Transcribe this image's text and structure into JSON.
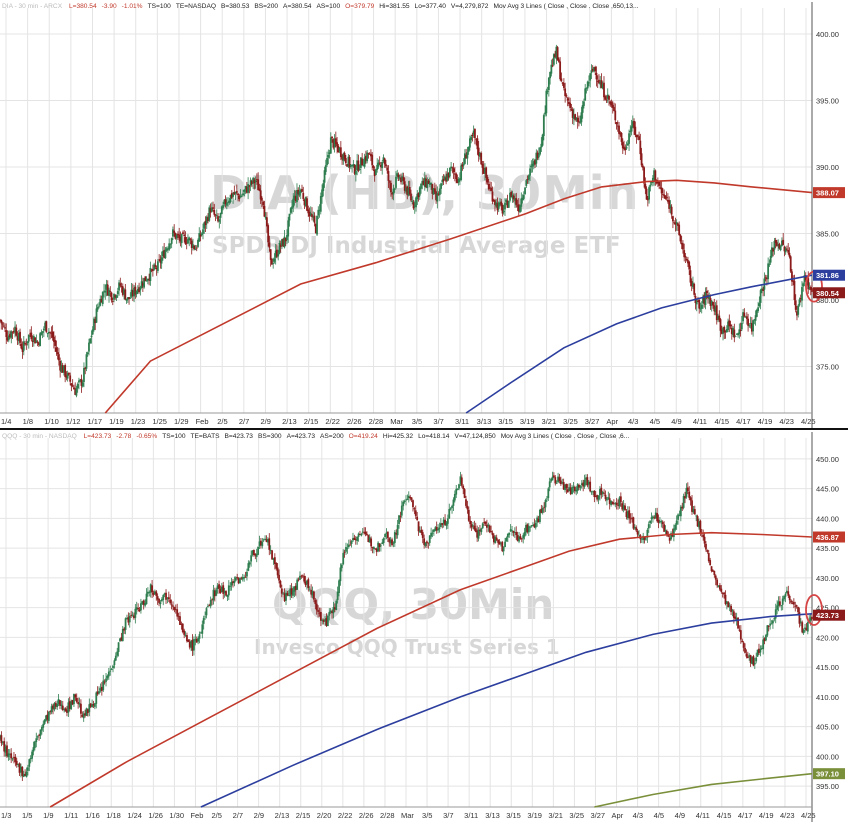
{
  "chart_data": [
    {
      "type": "candlestick",
      "symbol": "DIA (HB), 30Min",
      "watermark_title": "DIA (HB), 30Min",
      "watermark_subtitle": "SPDR DJ Industrial Average ETF",
      "header": {
        "muted": "DIA - 30 min - ARCX",
        "items": [
          {
            "text": "L=380.54",
            "tone": "red"
          },
          {
            "text": "-3.90",
            "tone": "red"
          },
          {
            "text": "-1.01%",
            "tone": "red"
          },
          {
            "text": "TS=100",
            "tone": "normal"
          },
          {
            "text": "TE=NASDAQ",
            "tone": "normal"
          },
          {
            "text": "B=380.53",
            "tone": "normal"
          },
          {
            "text": "BS=200",
            "tone": "normal"
          },
          {
            "text": "A=380.54",
            "tone": "normal"
          },
          {
            "text": "AS=100",
            "tone": "normal"
          },
          {
            "text": "O=379.79",
            "tone": "red"
          },
          {
            "text": "Hi=381.55",
            "tone": "normal"
          },
          {
            "text": "Lo=377.40",
            "tone": "normal"
          },
          {
            "text": "V=4,279,872",
            "tone": "normal"
          },
          {
            "text": "Mov Avg 3 Lines ( Close , Close , Close ,650,13...",
            "tone": "normal"
          }
        ]
      },
      "y_ticks": [
        375,
        380,
        385,
        390,
        395,
        400
      ],
      "ylim": [
        371.5,
        401.5
      ],
      "x_ticks": [
        "1/4",
        "1/8",
        "1/10",
        "1/12",
        "1/17",
        "1/19",
        "1/23",
        "1/25",
        "1/29",
        "Feb",
        "2/5",
        "2/7",
        "2/9",
        "2/13",
        "2/15",
        "2/22",
        "2/26",
        "2/28",
        "Mar",
        "3/5",
        "3/7",
        "3/11",
        "3/13",
        "3/15",
        "3/19",
        "3/21",
        "3/25",
        "3/27",
        "Apr",
        "4/3",
        "4/5",
        "4/9",
        "4/11",
        "4/15",
        "4/17",
        "4/19",
        "4/23",
        "4/25"
      ],
      "close_path": [
        [
          0,
          378.5
        ],
        [
          1,
          377.3
        ],
        [
          2,
          377.9
        ],
        [
          3,
          376.3
        ],
        [
          4,
          377.5
        ],
        [
          5,
          376.8
        ],
        [
          6,
          378.1
        ],
        [
          7,
          377.2
        ],
        [
          8,
          375.1
        ],
        [
          9,
          374.2
        ],
        [
          10,
          373.2
        ],
        [
          11,
          374.0
        ],
        [
          12,
          377.0
        ],
        [
          13,
          379.5
        ],
        [
          14,
          381.0
        ],
        [
          15,
          380.3
        ],
        [
          16,
          381.1
        ],
        [
          17,
          380.0
        ],
        [
          18,
          380.7
        ],
        [
          19,
          381.4
        ],
        [
          20,
          382.0
        ],
        [
          21,
          382.5
        ],
        [
          22,
          383.8
        ],
        [
          23,
          385.0
        ],
        [
          24,
          384.5
        ],
        [
          25,
          384.6
        ],
        [
          26,
          383.9
        ],
        [
          27,
          385.3
        ],
        [
          28,
          386.9
        ],
        [
          29,
          385.8
        ],
        [
          30,
          387.4
        ],
        [
          31,
          388.0
        ],
        [
          32,
          387.8
        ],
        [
          33,
          388.5
        ],
        [
          34,
          389.0
        ],
        [
          35,
          387.5
        ],
        [
          36,
          382.7
        ],
        [
          37,
          383.8
        ],
        [
          38,
          384.6
        ],
        [
          39,
          387.5
        ],
        [
          40,
          388.3
        ],
        [
          41,
          386.8
        ],
        [
          42,
          385.4
        ],
        [
          43,
          388.8
        ],
        [
          44,
          392.0
        ],
        [
          45,
          391.4
        ],
        [
          46,
          390.6
        ],
        [
          47,
          389.8
        ],
        [
          48,
          390.3
        ],
        [
          49,
          391.0
        ],
        [
          50,
          389.5
        ],
        [
          51,
          390.8
        ],
        [
          52,
          388.1
        ],
        [
          53,
          389.3
        ],
        [
          54,
          388.4
        ],
        [
          55,
          387.2
        ],
        [
          56,
          388.6
        ],
        [
          57,
          388.9
        ],
        [
          58,
          387.5
        ],
        [
          59,
          388.9
        ],
        [
          60,
          389.8
        ],
        [
          61,
          389.1
        ],
        [
          62,
          391.0
        ],
        [
          63,
          392.4
        ],
        [
          64,
          390.5
        ],
        [
          65,
          388.5
        ],
        [
          66,
          387.2
        ],
        [
          67,
          386.7
        ],
        [
          68,
          388.0
        ],
        [
          69,
          387.0
        ],
        [
          70,
          389.0
        ],
        [
          71,
          390.2
        ],
        [
          72,
          392.0
        ],
        [
          73,
          397.0
        ],
        [
          74,
          398.6
        ],
        [
          75,
          395.5
        ],
        [
          76,
          394.3
        ],
        [
          77,
          393.0
        ],
        [
          78,
          396.0
        ],
        [
          79,
          397.5
        ],
        [
          80,
          396.0
        ],
        [
          81,
          395.0
        ],
        [
          82,
          393.5
        ],
        [
          83,
          391.2
        ],
        [
          84,
          393.2
        ],
        [
          85,
          392.0
        ],
        [
          86,
          387.5
        ],
        [
          87,
          389.5
        ],
        [
          88,
          388.0
        ],
        [
          89,
          387.2
        ],
        [
          90,
          385.5
        ],
        [
          91,
          383.5
        ],
        [
          92,
          381.2
        ],
        [
          93,
          379.2
        ],
        [
          94,
          380.5
        ],
        [
          95,
          379.4
        ],
        [
          96,
          377.8
        ],
        [
          97,
          378.0
        ],
        [
          98,
          377.2
        ],
        [
          99,
          379.0
        ],
        [
          100,
          377.9
        ],
        [
          101,
          380.2
        ],
        [
          102,
          382.0
        ],
        [
          103,
          384.4
        ],
        [
          104,
          384.1
        ],
        [
          105,
          383.3
        ],
        [
          106,
          378.8
        ],
        [
          107,
          381.9
        ],
        [
          108,
          380.54
        ]
      ],
      "ma_series": [
        {
          "color": "#c0392b",
          "start": 14,
          "values": [
            [
              14,
              371.5
            ],
            [
              20,
              375.4
            ],
            [
              30,
              378.3
            ],
            [
              40,
              381.2
            ],
            [
              50,
              382.8
            ],
            [
              60,
              384.6
            ],
            [
              70,
              386.5
            ],
            [
              75,
              387.6
            ],
            [
              80,
              388.5
            ],
            [
              86,
              388.9
            ],
            [
              90,
              389.0
            ],
            [
              95,
              388.8
            ],
            [
              100,
              388.5
            ],
            [
              108,
              388.07
            ]
          ]
        },
        {
          "color": "#2c3e9e",
          "start": 62,
          "values": [
            [
              62,
              371.5
            ],
            [
              68,
              373.8
            ],
            [
              75,
              376.4
            ],
            [
              82,
              378.2
            ],
            [
              88,
              379.4
            ],
            [
              95,
              380.4
            ],
            [
              100,
              381.0
            ],
            [
              108,
              381.86
            ]
          ]
        }
      ],
      "price_tags": [
        {
          "label": "388.07",
          "value": 388.07,
          "color": "#c0392b"
        },
        {
          "label": "381.86",
          "value": 381.86,
          "color": "#2c3e9e"
        },
        {
          "label": "380.54",
          "value": 380.54,
          "color": "#8b1a1a"
        }
      ],
      "highlight_value": 381.0
    },
    {
      "type": "candlestick",
      "symbol": "QQQ, 30Min",
      "watermark_title": "QQQ, 30Min",
      "watermark_subtitle": "Invesco QQQ Trust Series 1",
      "header": {
        "muted": "QQQ - 30 min - NASDAQ",
        "items": [
          {
            "text": "L=423.73",
            "tone": "red"
          },
          {
            "text": "-2.78",
            "tone": "red"
          },
          {
            "text": "-0.65%",
            "tone": "red"
          },
          {
            "text": "TS=100",
            "tone": "normal"
          },
          {
            "text": "TE=BATS",
            "tone": "normal"
          },
          {
            "text": "B=423.73",
            "tone": "normal"
          },
          {
            "text": "BS=300",
            "tone": "normal"
          },
          {
            "text": "A=423.73",
            "tone": "normal"
          },
          {
            "text": "AS=200",
            "tone": "normal"
          },
          {
            "text": "O=419.24",
            "tone": "red"
          },
          {
            "text": "Hi=425.32",
            "tone": "normal"
          },
          {
            "text": "Lo=418.14",
            "tone": "normal"
          },
          {
            "text": "V=47,124,850",
            "tone": "normal"
          },
          {
            "text": "Mov Avg 3 Lines ( Close , Close , Close ,6...",
            "tone": "normal"
          }
        ]
      },
      "y_ticks": [
        395,
        400,
        405,
        410,
        415,
        420,
        425,
        430,
        435,
        440,
        445,
        450
      ],
      "ylim": [
        391.5,
        452.5
      ],
      "x_ticks": [
        "1/3",
        "1/5",
        "1/9",
        "1/11",
        "1/16",
        "1/18",
        "1/24",
        "1/26",
        "1/30",
        "Feb",
        "2/5",
        "2/7",
        "2/9",
        "2/13",
        "2/15",
        "2/20",
        "2/22",
        "2/26",
        "2/28",
        "Mar",
        "3/5",
        "3/7",
        "3/11",
        "3/13",
        "3/15",
        "3/19",
        "3/21",
        "3/25",
        "3/27",
        "Apr",
        "4/3",
        "4/5",
        "4/9",
        "4/11",
        "4/15",
        "4/17",
        "4/19",
        "4/23",
        "4/25"
      ],
      "close_path": [
        [
          0,
          403.0
        ],
        [
          1,
          400.0
        ],
        [
          2,
          398.5
        ],
        [
          3,
          397.0
        ],
        [
          4,
          401.5
        ],
        [
          5,
          405.0
        ],
        [
          6,
          407.5
        ],
        [
          7,
          409.0
        ],
        [
          8,
          408.0
        ],
        [
          9,
          410.2
        ],
        [
          10,
          406.5
        ],
        [
          11,
          409.0
        ],
        [
          12,
          411.0
        ],
        [
          13,
          414.0
        ],
        [
          14,
          418.0
        ],
        [
          15,
          422.5
        ],
        [
          16,
          424.0
        ],
        [
          17,
          425.5
        ],
        [
          18,
          428.5
        ],
        [
          19,
          426.5
        ],
        [
          20,
          427.2
        ],
        [
          21,
          425.0
        ],
        [
          22,
          420.0
        ],
        [
          23,
          418.5
        ],
        [
          24,
          421.0
        ],
        [
          25,
          426.0
        ],
        [
          26,
          428.5
        ],
        [
          27,
          427.5
        ],
        [
          28,
          430.0
        ],
        [
          29,
          429.5
        ],
        [
          30,
          433.5
        ],
        [
          31,
          435.5
        ],
        [
          32,
          436.0
        ],
        [
          33,
          431.0
        ],
        [
          34,
          426.5
        ],
        [
          35,
          428.0
        ],
        [
          36,
          430.0
        ],
        [
          37,
          428.5
        ],
        [
          38,
          424.0
        ],
        [
          39,
          422.5
        ],
        [
          40,
          425.5
        ],
        [
          41,
          434.0
        ],
        [
          42,
          436.5
        ],
        [
          43,
          437.5
        ],
        [
          44,
          436.5
        ],
        [
          45,
          435.0
        ],
        [
          46,
          437.5
        ],
        [
          47,
          436.0
        ],
        [
          48,
          442.0
        ],
        [
          49,
          444.0
        ],
        [
          50,
          438.0
        ],
        [
          51,
          435.5
        ],
        [
          52,
          438.5
        ],
        [
          53,
          439.0
        ],
        [
          54,
          442.0
        ],
        [
          55,
          447.0
        ],
        [
          56,
          440.0
        ],
        [
          57,
          437.5
        ],
        [
          58,
          439.5
        ],
        [
          59,
          436.5
        ],
        [
          60,
          435.0
        ],
        [
          61,
          438.0
        ],
        [
          62,
          436.5
        ],
        [
          63,
          438.5
        ],
        [
          64,
          439.0
        ],
        [
          65,
          442.5
        ],
        [
          66,
          447.0
        ],
        [
          67,
          446.0
        ],
        [
          68,
          444.5
        ],
        [
          69,
          445.5
        ],
        [
          70,
          446.5
        ],
        [
          71,
          443.5
        ],
        [
          72,
          444.5
        ],
        [
          73,
          442.5
        ],
        [
          74,
          443.0
        ],
        [
          75,
          440.5
        ],
        [
          76,
          438.0
        ],
        [
          77,
          436.0
        ],
        [
          78,
          441.0
        ],
        [
          79,
          439.0
        ],
        [
          80,
          436.5
        ],
        [
          81,
          440.0
        ],
        [
          82,
          444.5
        ],
        [
          83,
          440.5
        ],
        [
          84,
          437.0
        ],
        [
          85,
          431.0
        ],
        [
          86,
          428.0
        ],
        [
          87,
          425.0
        ],
        [
          88,
          422.5
        ],
        [
          89,
          418.0
        ],
        [
          90,
          415.5
        ],
        [
          91,
          419.0
        ],
        [
          92,
          422.5
        ],
        [
          93,
          425.5
        ],
        [
          94,
          427.5
        ],
        [
          95,
          425.5
        ],
        [
          96,
          420.5
        ],
        [
          97,
          423.73
        ]
      ],
      "ma_series": [
        {
          "color": "#c0392b",
          "start": 6,
          "values": [
            [
              6,
              391.5
            ],
            [
              15,
              399.0
            ],
            [
              25,
              406.5
            ],
            [
              35,
              414.0
            ],
            [
              45,
              421.5
            ],
            [
              55,
              428.0
            ],
            [
              62,
              431.5
            ],
            [
              68,
              434.5
            ],
            [
              74,
              436.5
            ],
            [
              80,
              437.3
            ],
            [
              85,
              437.6
            ],
            [
              91,
              437.3
            ],
            [
              97,
              436.87
            ]
          ]
        },
        {
          "color": "#2c3e9e",
          "start": 24,
          "values": [
            [
              24,
              391.5
            ],
            [
              35,
              398.5
            ],
            [
              45,
              404.5
            ],
            [
              55,
              410.0
            ],
            [
              62,
              413.5
            ],
            [
              70,
              417.5
            ],
            [
              78,
              420.5
            ],
            [
              85,
              422.4
            ],
            [
              92,
              423.5
            ],
            [
              97,
              423.97
            ]
          ]
        },
        {
          "color": "#7a8f3a",
          "start": 71,
          "values": [
            [
              71,
              391.5
            ],
            [
              78,
              393.6
            ],
            [
              85,
              395.3
            ],
            [
              91,
              396.2
            ],
            [
              97,
              397.1
            ]
          ]
        }
      ],
      "price_tags": [
        {
          "label": "436.87",
          "value": 436.87,
          "color": "#c0392b"
        },
        {
          "label": "423.73",
          "value": 423.73,
          "color": "#8b1a1a"
        },
        {
          "label": "397.10",
          "value": 397.1,
          "color": "#7a8f3a"
        }
      ],
      "highlight_value": 424.6
    }
  ]
}
